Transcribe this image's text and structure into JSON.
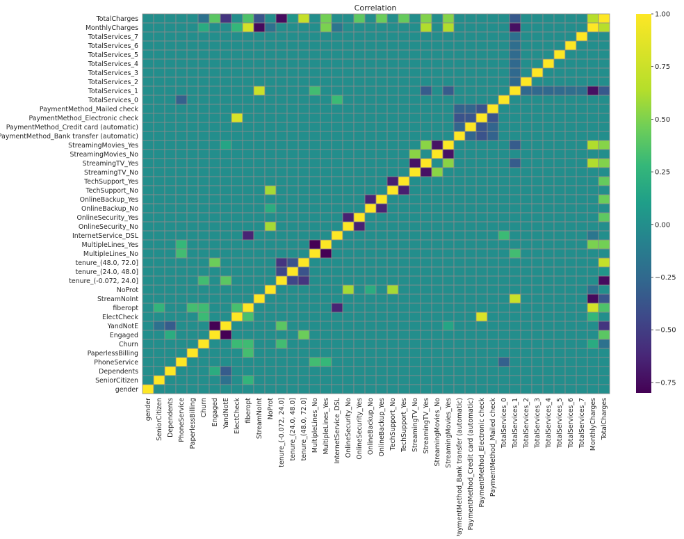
{
  "chart_data": {
    "type": "heatmap",
    "title": "Correlation",
    "xlabel": "",
    "ylabel": "",
    "variables": [
      "gender",
      "SeniorCitizen",
      "Dependents",
      "PhoneService",
      "PaperlessBilling",
      "Churn",
      "Engaged",
      "YandNotE",
      "ElectCheck",
      "fiberopt",
      "StreamNoInt",
      "NoProt",
      "tenure_(-0.072, 24.0]",
      "tenure_(24.0, 48.0]",
      "tenure_(48.0, 72.0]",
      "MultipleLines_No",
      "MultipleLines_Yes",
      "InternetService_DSL",
      "OnlineSecurity_No",
      "OnlineSecurity_Yes",
      "OnlineBackup_No",
      "OnlineBackup_Yes",
      "TechSupport_No",
      "TechSupport_Yes",
      "StreamingTV_No",
      "StreamingTV_Yes",
      "StreamingMovies_No",
      "StreamingMovies_Yes",
      "PaymentMethod_Bank transfer (automatic)",
      "PaymentMethod_Credit card (automatic)",
      "PaymentMethod_Electronic check",
      "PaymentMethod_Mailed check",
      "TotalServices_0",
      "TotalServices_1",
      "TotalServices_2",
      "TotalServices_3",
      "TotalServices_4",
      "TotalServices_5",
      "TotalServices_6",
      "TotalServices_7",
      "MonthlyCharges",
      "TotalCharges"
    ],
    "y_order": "reversed",
    "vmin": -0.8,
    "vmax": 1.0,
    "colormap": "viridis",
    "colorbar_ticks": [
      "1.00",
      "0.75",
      "0.50",
      "0.25",
      "0.00",
      "−0.25",
      "−0.50",
      "−0.75"
    ],
    "colorbar_tick_values": [
      1.0,
      0.75,
      0.5,
      0.25,
      0.0,
      -0.25,
      -0.5,
      -0.75
    ],
    "grid_color": "#8c8c8c",
    "diagonal": 1.0,
    "default_value": 0.0,
    "approx_pairs": [
      [
        "TotalCharges",
        "MonthlyCharges",
        0.65
      ],
      [
        "TotalCharges",
        "tenure_(48.0, 72.0]",
        0.72
      ],
      [
        "TotalCharges",
        "tenure_(-0.072, 24.0]",
        -0.75
      ],
      [
        "TotalCharges",
        "tenure_(24.0, 48.0]",
        0.05
      ],
      [
        "TotalCharges",
        "Engaged",
        0.4
      ],
      [
        "TotalCharges",
        "YandNotE",
        -0.55
      ],
      [
        "TotalCharges",
        "fiberopt",
        0.36
      ],
      [
        "TotalCharges",
        "StreamNoInt",
        -0.37
      ],
      [
        "TotalCharges",
        "MultipleLines_Yes",
        0.47
      ],
      [
        "TotalCharges",
        "StreamingTV_Yes",
        0.51
      ],
      [
        "TotalCharges",
        "StreamingMovies_Yes",
        0.52
      ],
      [
        "TotalCharges",
        "OnlineBackup_Yes",
        0.45
      ],
      [
        "TotalCharges",
        "OnlineSecurity_Yes",
        0.41
      ],
      [
        "TotalCharges",
        "TechSupport_Yes",
        0.43
      ],
      [
        "TotalCharges",
        "TotalServices_1",
        -0.35
      ],
      [
        "TotalCharges",
        "Churn",
        -0.2
      ],
      [
        "MonthlyCharges",
        "StreamNoInt",
        -0.76
      ],
      [
        "MonthlyCharges",
        "fiberopt",
        0.79
      ],
      [
        "MonthlyCharges",
        "TotalServices_1",
        -0.73
      ],
      [
        "MonthlyCharges",
        "NoProt",
        -0.2
      ],
      [
        "MonthlyCharges",
        "StreamingTV_Yes",
        0.63
      ],
      [
        "MonthlyCharges",
        "StreamingMovies_Yes",
        0.63
      ],
      [
        "MonthlyCharges",
        "MultipleLines_Yes",
        0.49
      ],
      [
        "MonthlyCharges",
        "InternetService_DSL",
        -0.16
      ],
      [
        "MonthlyCharges",
        "ElectCheck",
        0.27
      ],
      [
        "MonthlyCharges",
        "Churn",
        0.19
      ],
      [
        "StreamNoInt",
        "TotalServices_1",
        0.74
      ],
      [
        "fiberopt",
        "InternetService_DSL",
        -0.64
      ],
      [
        "ElectCheck",
        "PaymentMethod_Electronic check",
        0.82
      ],
      [
        "ElectCheck",
        "fiberopt",
        0.34
      ],
      [
        "Engaged",
        "YandNotE",
        -0.8
      ],
      [
        "NoProt",
        "OnlineSecurity_No",
        0.6
      ],
      [
        "NoProt",
        "TechSupport_No",
        0.6
      ],
      [
        "Engaged",
        "tenure_(48.0, 72.0]",
        0.45
      ],
      [
        "YandNotE",
        "tenure_(-0.072, 24.0]",
        0.4
      ],
      [
        "tenure_(-0.072, 24.0]",
        "tenure_(24.0, 48.0]",
        -0.45
      ],
      [
        "tenure_(-0.072, 24.0]",
        "tenure_(48.0, 72.0]",
        -0.55
      ],
      [
        "tenure_(24.0, 48.0]",
        "tenure_(48.0, 72.0]",
        -0.38
      ],
      [
        "MultipleLines_No",
        "MultipleLines_Yes",
        -0.82
      ],
      [
        "OnlineSecurity_No",
        "OnlineSecurity_Yes",
        -0.65
      ],
      [
        "OnlineBackup_No",
        "OnlineBackup_Yes",
        -0.64
      ],
      [
        "TechSupport_No",
        "TechSupport_Yes",
        -0.66
      ],
      [
        "StreamingTV_No",
        "StreamingTV_Yes",
        -0.72
      ],
      [
        "StreamingMovies_No",
        "StreamingMovies_Yes",
        -0.72
      ],
      [
        "PaymentMethod_Bank transfer (automatic)",
        "PaymentMethod_Credit card (automatic)",
        -0.28
      ],
      [
        "PaymentMethod_Bank transfer (automatic)",
        "PaymentMethod_Electronic check",
        -0.38
      ],
      [
        "PaymentMethod_Bank transfer (automatic)",
        "PaymentMethod_Mailed check",
        -0.29
      ],
      [
        "PaymentMethod_Credit card (automatic)",
        "PaymentMethod_Electronic check",
        -0.37
      ],
      [
        "PaymentMethod_Credit card (automatic)",
        "PaymentMethod_Mailed check",
        -0.28
      ],
      [
        "PaymentMethod_Electronic check",
        "PaymentMethod_Mailed check",
        -0.38
      ],
      [
        "TotalServices_1",
        "TotalServices_2",
        -0.25
      ],
      [
        "TotalServices_1",
        "TotalServices_3",
        -0.25
      ],
      [
        "TotalServices_1",
        "TotalServices_4",
        -0.25
      ],
      [
        "TotalServices_1",
        "TotalServices_5",
        -0.24
      ],
      [
        "TotalServices_1",
        "TotalServices_6",
        -0.22
      ],
      [
        "TotalServices_1",
        "TotalServices_7",
        -0.2
      ],
      [
        "TotalServices_0",
        "PhoneService",
        -0.3
      ],
      [
        "TotalServices_0",
        "InternetService_DSL",
        0.3
      ],
      [
        "StreamingTV_Yes",
        "StreamingMovies_Yes",
        0.53
      ],
      [
        "StreamingTV_No",
        "StreamingMovies_No",
        0.53
      ],
      [
        "OnlineBackup_No",
        "NoProt",
        0.2
      ],
      [
        "StreamingTV_Yes",
        "TotalServices_1",
        -0.33
      ],
      [
        "StreamingMovies_Yes",
        "TotalServices_1",
        -0.33
      ],
      [
        "StreamingMovies_Yes",
        "YandNotE",
        0.15
      ],
      [
        "PaperlessBilling",
        "fiberopt",
        0.33
      ],
      [
        "Churn",
        "fiberopt",
        0.31
      ],
      [
        "Churn",
        "ElectCheck",
        0.3
      ],
      [
        "Churn",
        "tenure_(-0.072, 24.0]",
        0.32
      ],
      [
        "SeniorCitizen",
        "fiberopt",
        0.26
      ],
      [
        "SeniorCitizen",
        "YandNotE",
        -0.2
      ],
      [
        "Dependents",
        "YandNotE",
        -0.33
      ],
      [
        "Dependents",
        "Engaged",
        0.2
      ],
      [
        "PhoneService",
        "MultipleLines_No",
        0.32
      ],
      [
        "PhoneService",
        "MultipleLines_Yes",
        0.28
      ],
      [
        "MultipleLines_No",
        "TotalServices_1",
        0.32
      ]
    ]
  }
}
